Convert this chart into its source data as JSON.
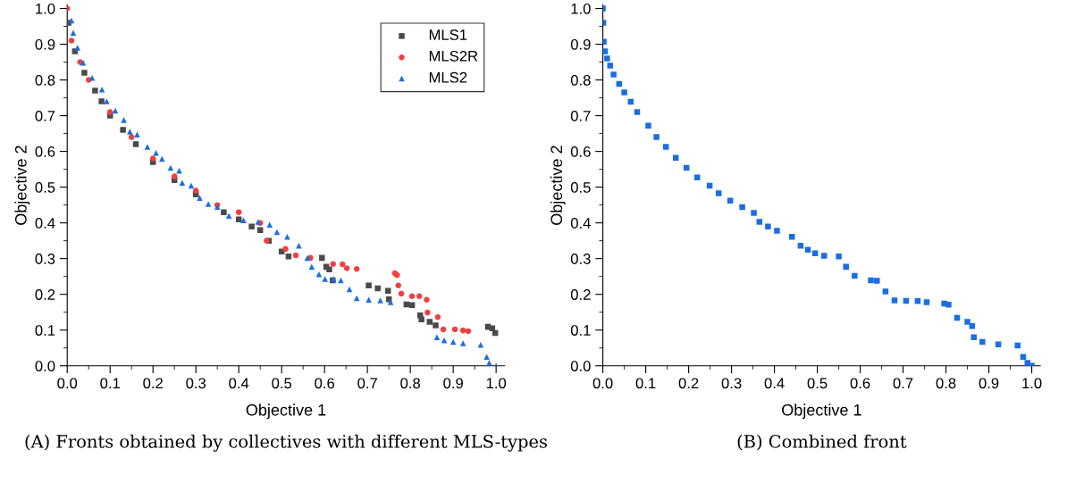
{
  "chart_data": [
    {
      "type": "scatter",
      "xlabel": "Objective 1",
      "ylabel": "Objective 2",
      "xlim": [
        0,
        1.02
      ],
      "ylim": [
        0,
        1.01
      ],
      "xticks": [
        {
          "value": 0,
          "label": "0.0"
        },
        {
          "value": 0.1,
          "label": "0.1"
        },
        {
          "value": 0.2,
          "label": "0.2"
        },
        {
          "value": 0.3,
          "label": "0.3"
        },
        {
          "value": 0.4,
          "label": "0.4"
        },
        {
          "value": 0.5,
          "label": "0.5"
        },
        {
          "value": 0.6,
          "label": "0.6"
        },
        {
          "value": 0.7,
          "label": "0.7"
        },
        {
          "value": 0.8,
          "label": "0.8"
        },
        {
          "value": 0.9,
          "label": "0.9"
        },
        {
          "value": 1,
          "label": "1.0"
        }
      ],
      "yticks": [
        {
          "value": 0,
          "label": "0.0"
        },
        {
          "value": 0.1,
          "label": "0.1"
        },
        {
          "value": 0.2,
          "label": "0.2"
        },
        {
          "value": 0.3,
          "label": "0.3"
        },
        {
          "value": 0.4,
          "label": "0.4"
        },
        {
          "value": 0.5,
          "label": "0.5"
        },
        {
          "value": 0.6,
          "label": "0.6"
        },
        {
          "value": 0.7,
          "label": "0.7"
        },
        {
          "value": 0.8,
          "label": "0.8"
        },
        {
          "value": 0.9,
          "label": "0.9"
        },
        {
          "value": 1,
          "label": "1.0"
        }
      ],
      "grid": false,
      "legend": "top right",
      "annotations": [
        "(A) Fronts obtained by collectives with different MLS-types"
      ],
      "series": [
        {
          "name": "MLS1",
          "color": "#4a4a4a",
          "marker": "square",
          "x": [
            0.003,
            0.018,
            0.04,
            0.065,
            0.08,
            0.1,
            0.13,
            0.16,
            0.2,
            0.25,
            0.3,
            0.365,
            0.4,
            0.43,
            0.45,
            0.47,
            0.5,
            0.516,
            0.594,
            0.604,
            0.611,
            0.619,
            0.703,
            0.724,
            0.748,
            0.75,
            0.791,
            0.804,
            0.823,
            0.826,
            0.845,
            0.859,
            0.981,
            0.991,
            0.998
          ],
          "values": [
            0.96,
            0.88,
            0.82,
            0.77,
            0.74,
            0.7,
            0.66,
            0.62,
            0.57,
            0.52,
            0.48,
            0.43,
            0.41,
            0.39,
            0.38,
            0.35,
            0.32,
            0.306,
            0.302,
            0.277,
            0.27,
            0.239,
            0.225,
            0.217,
            0.21,
            0.186,
            0.172,
            0.17,
            0.141,
            0.13,
            0.123,
            0.113,
            0.109,
            0.105,
            0.092
          ]
        },
        {
          "name": "MLS2R",
          "color": "#f04040",
          "marker": "circle",
          "x": [
            0,
            0.01,
            0.03,
            0.05,
            0.1,
            0.15,
            0.2,
            0.25,
            0.3,
            0.35,
            0.4,
            0.45,
            0.465,
            0.509,
            0.533,
            0.567,
            0.62,
            0.642,
            0.652,
            0.675,
            0.764,
            0.769,
            0.772,
            0.779,
            0.804,
            0.821,
            0.838,
            0.84,
            0.864,
            0.877,
            0.904,
            0.923,
            0.935
          ],
          "values": [
            1.0,
            0.91,
            0.85,
            0.8,
            0.71,
            0.64,
            0.58,
            0.53,
            0.49,
            0.45,
            0.43,
            0.4,
            0.35,
            0.327,
            0.309,
            0.302,
            0.285,
            0.284,
            0.273,
            0.271,
            0.259,
            0.254,
            0.225,
            0.202,
            0.195,
            0.195,
            0.185,
            0.149,
            0.136,
            0.102,
            0.102,
            0.099,
            0.097
          ]
        },
        {
          "name": "MLS2",
          "color": "#1a6ee0",
          "marker": "triangle",
          "x": [
            0.01,
            0.014,
            0.024,
            0.037,
            0.058,
            0.081,
            0.092,
            0.112,
            0.132,
            0.146,
            0.163,
            0.187,
            0.207,
            0.221,
            0.241,
            0.261,
            0.268,
            0.289,
            0.309,
            0.329,
            0.35,
            0.377,
            0.411,
            0.445,
            0.472,
            0.489,
            0.513,
            0.54,
            0.56,
            0.57,
            0.587,
            0.601,
            0.621,
            0.638,
            0.658,
            0.675,
            0.703,
            0.73,
            0.754,
            0.862,
            0.879,
            0.9,
            0.923,
            0.964,
            0.978,
            0.984,
            1.0
          ],
          "values": [
            0.966,
            0.932,
            0.89,
            0.848,
            0.806,
            0.773,
            0.74,
            0.714,
            0.688,
            0.655,
            0.647,
            0.613,
            0.596,
            0.579,
            0.554,
            0.546,
            0.512,
            0.504,
            0.47,
            0.453,
            0.445,
            0.42,
            0.407,
            0.403,
            0.395,
            0.374,
            0.361,
            0.336,
            0.302,
            0.277,
            0.256,
            0.243,
            0.243,
            0.239,
            0.214,
            0.189,
            0.185,
            0.183,
            0.178,
            0.08,
            0.071,
            0.067,
            0.063,
            0.059,
            0.025,
            0.008,
            0.0
          ]
        }
      ]
    },
    {
      "type": "scatter",
      "xlabel": "Objective 1",
      "ylabel": "Objective 2",
      "xlim": [
        0,
        1.02
      ],
      "ylim": [
        0,
        1.01
      ],
      "xticks": [
        {
          "value": 0,
          "label": "0.0"
        },
        {
          "value": 0.1,
          "label": "0.1"
        },
        {
          "value": 0.2,
          "label": "0.2"
        },
        {
          "value": 0.3,
          "label": "0.3"
        },
        {
          "value": 0.4,
          "label": "0.4"
        },
        {
          "value": 0.5,
          "label": "0.5"
        },
        {
          "value": 0.6,
          "label": "0.6"
        },
        {
          "value": 0.7,
          "label": "0.7"
        },
        {
          "value": 0.8,
          "label": "0.8"
        },
        {
          "value": 0.9,
          "label": "0.9"
        },
        {
          "value": 1,
          "label": "1.0"
        }
      ],
      "yticks": [
        {
          "value": 0,
          "label": "0.0"
        },
        {
          "value": 0.1,
          "label": "0.1"
        },
        {
          "value": 0.2,
          "label": "0.2"
        },
        {
          "value": 0.3,
          "label": "0.3"
        },
        {
          "value": 0.4,
          "label": "0.4"
        },
        {
          "value": 0.5,
          "label": "0.5"
        },
        {
          "value": 0.6,
          "label": "0.6"
        },
        {
          "value": 0.7,
          "label": "0.7"
        },
        {
          "value": 0.8,
          "label": "0.8"
        },
        {
          "value": 0.9,
          "label": "0.9"
        },
        {
          "value": 1,
          "label": "1.0"
        }
      ],
      "grid": false,
      "annotations": [
        "(B) Combined front"
      ],
      "series": [
        {
          "color": "#1a6ee0",
          "marker": "square",
          "x": [
            0,
            0.001,
            0.002,
            0.005,
            0.01,
            0.017,
            0.025,
            0.038,
            0.05,
            0.065,
            0.08,
            0.106,
            0.125,
            0.147,
            0.17,
            0.195,
            0.22,
            0.249,
            0.27,
            0.297,
            0.325,
            0.352,
            0.365,
            0.385,
            0.406,
            0.441,
            0.461,
            0.478,
            0.495,
            0.516,
            0.55,
            0.567,
            0.587,
            0.625,
            0.639,
            0.659,
            0.68,
            0.707,
            0.734,
            0.755,
            0.796,
            0.806,
            0.826,
            0.85,
            0.861,
            0.865,
            0.885,
            0.922,
            0.967,
            0.98,
            0.99,
            1.0
          ],
          "values": [
            1.0,
            0.96,
            0.907,
            0.88,
            0.86,
            0.84,
            0.815,
            0.789,
            0.765,
            0.739,
            0.71,
            0.672,
            0.64,
            0.613,
            0.582,
            0.554,
            0.527,
            0.504,
            0.483,
            0.462,
            0.444,
            0.428,
            0.403,
            0.39,
            0.378,
            0.361,
            0.336,
            0.325,
            0.315,
            0.308,
            0.306,
            0.277,
            0.252,
            0.239,
            0.238,
            0.208,
            0.183,
            0.182,
            0.181,
            0.178,
            0.174,
            0.171,
            0.134,
            0.123,
            0.111,
            0.08,
            0.067,
            0.06,
            0.057,
            0.025,
            0.008,
            0.0
          ]
        }
      ]
    }
  ]
}
